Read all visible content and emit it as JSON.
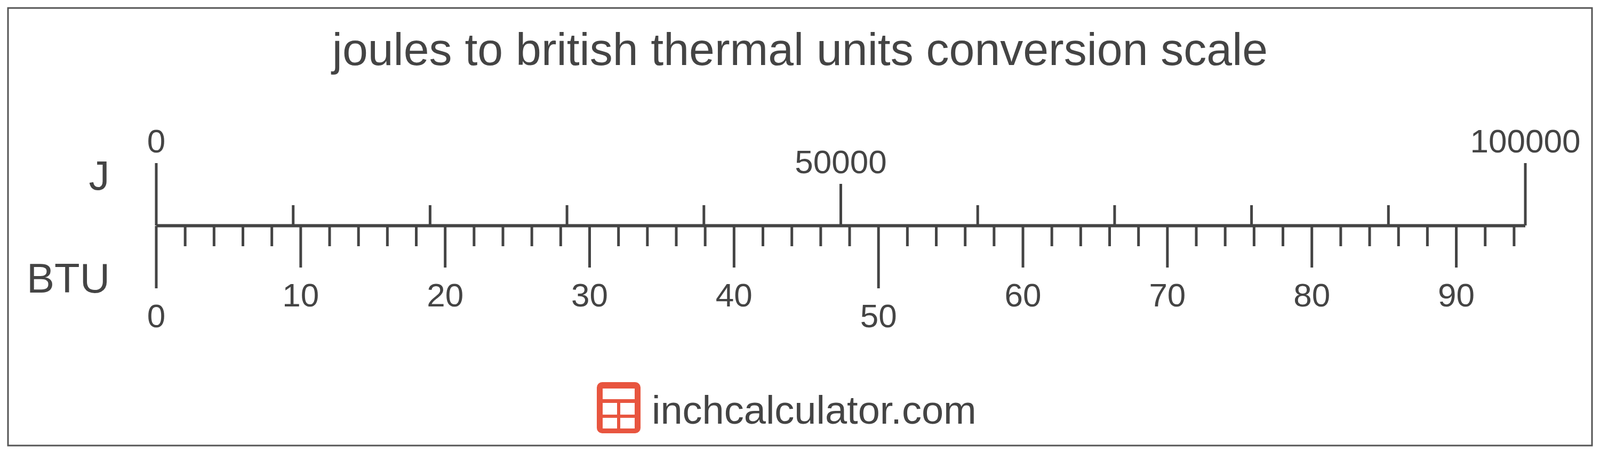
{
  "chart_data": {
    "type": "conversion_scale",
    "title": "joules to british thermal units conversion scale",
    "axes": [
      {
        "label": "J",
        "position": "top",
        "xlim": [
          0,
          100000
        ],
        "xticks": [
          0,
          50000,
          100000
        ],
        "minor_ticks": [
          10000,
          20000,
          30000,
          40000,
          60000,
          70000,
          80000,
          90000
        ]
      },
      {
        "label": "BTU",
        "position": "bottom",
        "xlim": [
          0,
          94.78
        ],
        "xticks": [
          0,
          10,
          20,
          30,
          40,
          50,
          60,
          70,
          80,
          90
        ],
        "minor_ticks": [
          2,
          4,
          6,
          8,
          12,
          14,
          16,
          18,
          22,
          24,
          26,
          28,
          32,
          34,
          36,
          38,
          42,
          44,
          46,
          48,
          52,
          54,
          56,
          58,
          62,
          64,
          66,
          68,
          72,
          74,
          76,
          78,
          82,
          84,
          86,
          88,
          92,
          94
        ]
      }
    ]
  },
  "footer": {
    "text": "inchcalculator.com"
  }
}
